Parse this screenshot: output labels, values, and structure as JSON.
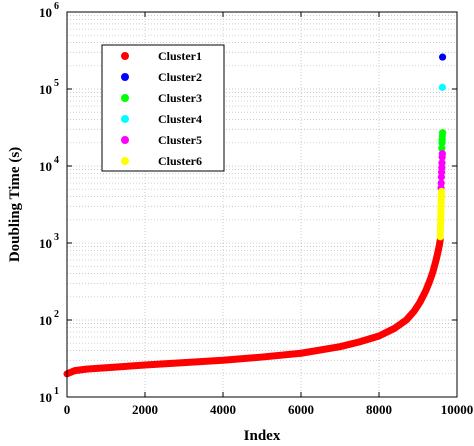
{
  "chart_data": {
    "type": "scatter",
    "xlabel": "Index",
    "ylabel": "Doubling Time (s)",
    "xlim": [
      0,
      10000
    ],
    "ylim": [
      10,
      1000000
    ],
    "yscale": "log",
    "grid": true,
    "x_ticks": [
      "0",
      "2000",
      "4000",
      "6000",
      "8000",
      "10000"
    ],
    "y_ticks": [
      {
        "base": "10",
        "exp": "1"
      },
      {
        "base": "10",
        "exp": "2"
      },
      {
        "base": "10",
        "exp": "3"
      },
      {
        "base": "10",
        "exp": "4"
      },
      {
        "base": "10",
        "exp": "5"
      },
      {
        "base": "10",
        "exp": "6"
      }
    ],
    "legend_position": "top-left",
    "series": [
      {
        "name": "Cluster1",
        "color": "#ff0000",
        "curve": [
          [
            0,
            20
          ],
          [
            200,
            22
          ],
          [
            500,
            23
          ],
          [
            1000,
            24
          ],
          [
            2000,
            26
          ],
          [
            3000,
            28
          ],
          [
            4000,
            30
          ],
          [
            5000,
            33
          ],
          [
            6000,
            37
          ],
          [
            7000,
            45
          ],
          [
            7500,
            52
          ],
          [
            8000,
            62
          ],
          [
            8400,
            78
          ],
          [
            8700,
            100
          ],
          [
            8900,
            130
          ],
          [
            9050,
            170
          ],
          [
            9200,
            240
          ],
          [
            9300,
            320
          ],
          [
            9380,
            420
          ],
          [
            9440,
            540
          ],
          [
            9480,
            650
          ],
          [
            9520,
            800
          ],
          [
            9550,
            950
          ],
          [
            9570,
            1100
          ]
        ]
      },
      {
        "name": "Cluster2",
        "color": "#0000ff",
        "points": [
          [
            9630,
            260000
          ]
        ]
      },
      {
        "name": "Cluster3",
        "color": "#00ff00",
        "points": [
          [
            9610,
            17000
          ],
          [
            9615,
            20000
          ],
          [
            9620,
            22000
          ],
          [
            9625,
            24500
          ],
          [
            9630,
            27000
          ]
        ]
      },
      {
        "name": "Cluster4",
        "color": "#00ffff",
        "points": [
          [
            9625,
            105000
          ]
        ]
      },
      {
        "name": "Cluster5",
        "color": "#ff00ff",
        "points": [
          [
            9590,
            5200
          ],
          [
            9595,
            6000
          ],
          [
            9600,
            7200
          ],
          [
            9605,
            8300
          ],
          [
            9610,
            9500
          ],
          [
            9615,
            11000
          ],
          [
            9620,
            13000
          ],
          [
            9625,
            14500
          ]
        ]
      },
      {
        "name": "Cluster6",
        "color": "#ffff00",
        "curve": [
          [
            9570,
            1200
          ],
          [
            9575,
            1450
          ],
          [
            9580,
            1800
          ],
          [
            9585,
            2200
          ],
          [
            9590,
            2800
          ],
          [
            9595,
            3500
          ],
          [
            9600,
            4200
          ],
          [
            9605,
            4700
          ]
        ]
      }
    ]
  }
}
